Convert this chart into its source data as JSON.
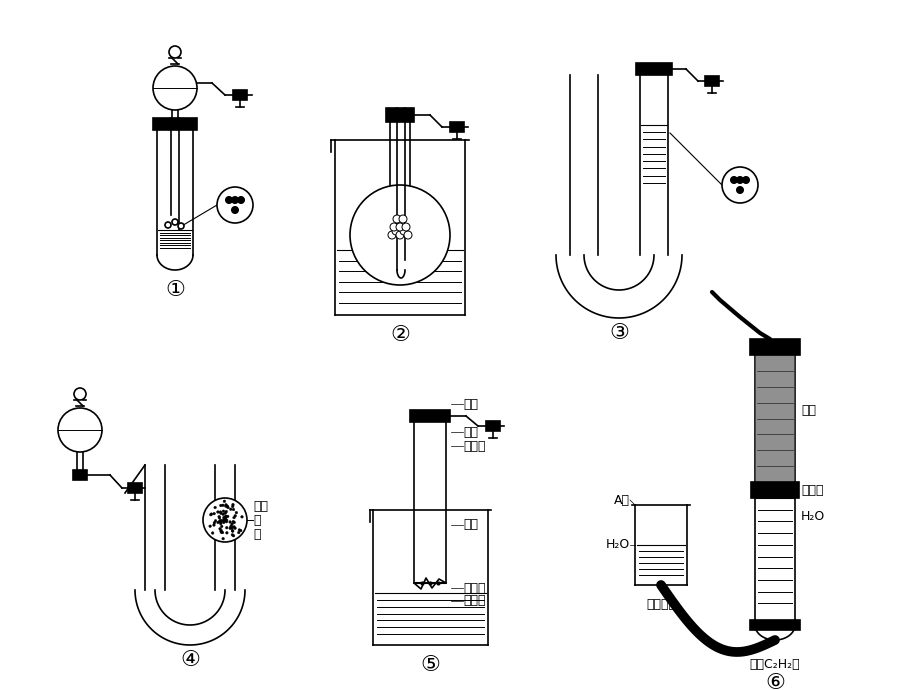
{
  "background_color": "#ffffff",
  "line_color": "#000000",
  "labels": {
    "label1": "①",
    "label2": "②",
    "label3": "③",
    "label4": "④",
    "label5": "⑤",
    "label6": "⑥"
  },
  "annotations5": {
    "piston": "活塞",
    "broken_bottom": "破底",
    "large_tube": "大试管",
    "beaker": "烧杯",
    "plastic": "带小孔",
    "plastic2": "塑料片"
  },
  "annotations6": {
    "A_tube": "A管",
    "water": "H₂O",
    "rubber": "橡胶软管",
    "carbide": "电石",
    "wire_mesh": "鐵丝网",
    "water2": "H₂O",
    "product": "（制C₂H₂）"
  },
  "annotations4": {
    "porous": "有孔",
    "ceramic": "瓷",
    "ring": "环"
  }
}
